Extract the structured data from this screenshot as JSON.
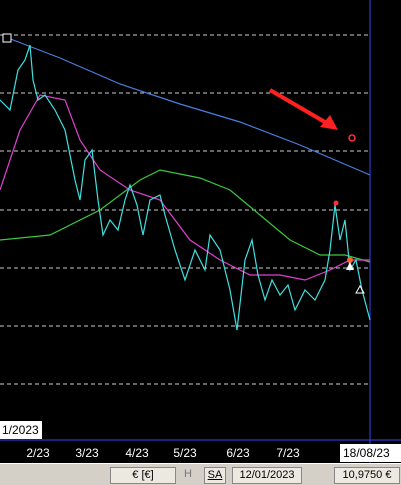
{
  "x_labels": [
    "2/23",
    "3/23",
    "4/23",
    "5/23",
    "6/23",
    "7/23"
  ],
  "cursor_date": "18/08/23",
  "date_tag": "1/2023",
  "status": {
    "currency": "€ [€]",
    "h": "H",
    "sa": "SA",
    "date": "12/01/2023",
    "price": "10,9750 €"
  }
}
